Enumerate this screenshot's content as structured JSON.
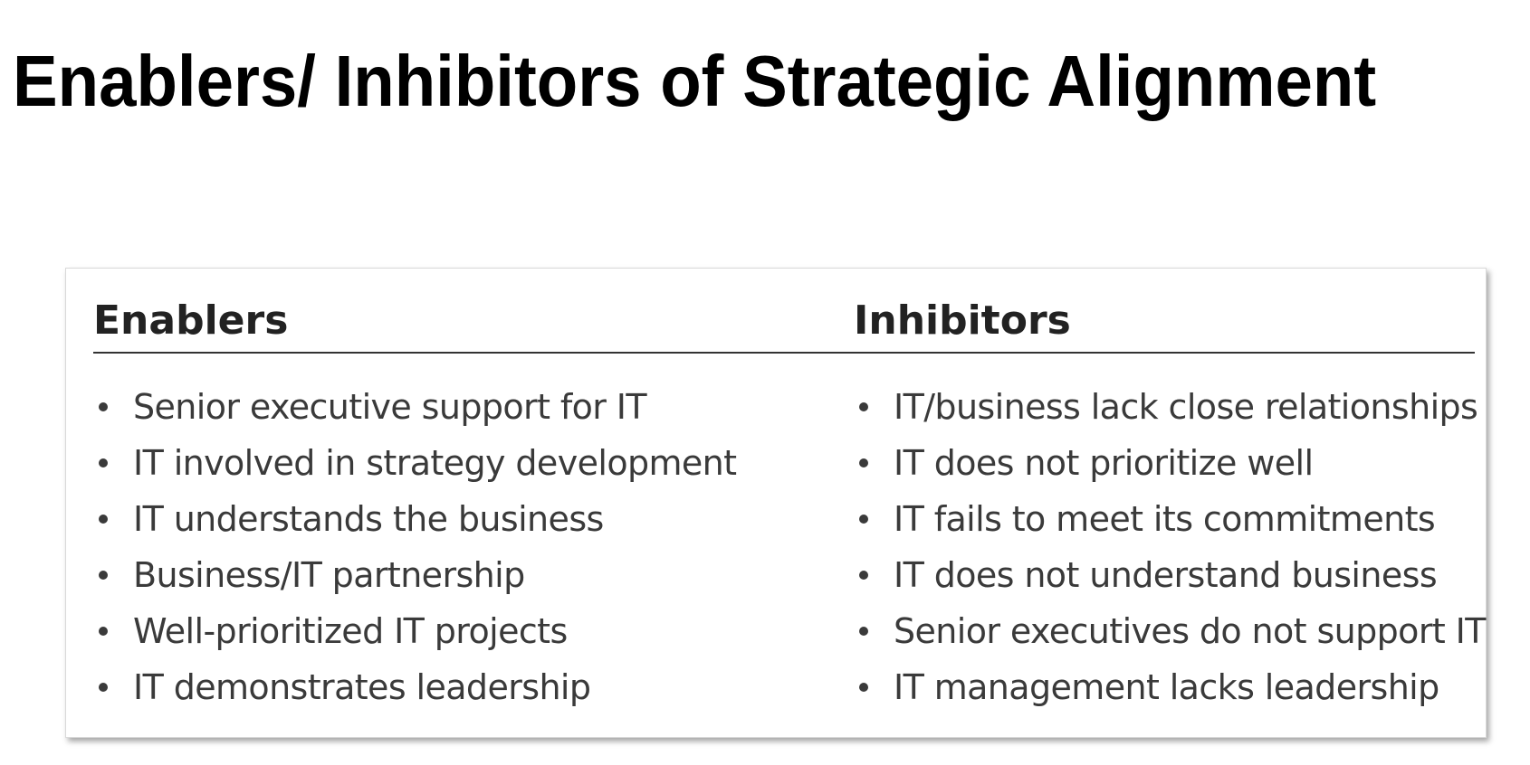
{
  "title": "Enablers/ Inhibitors of Strategic Alignment",
  "table": {
    "enablers_header": "Enablers",
    "inhibitors_header": "Inhibitors",
    "enablers": [
      "Senior executive support for IT",
      "IT involved in strategy development",
      "IT understands the business",
      "Business/IT partnership",
      "Well-prioritized IT projects",
      "IT demonstrates leadership"
    ],
    "inhibitors": [
      "IT/business lack close relationships",
      "IT does not prioritize well",
      "IT fails to meet its commitments",
      "IT does not understand business",
      "Senior executives do not support IT",
      "IT management lacks leadership"
    ]
  }
}
